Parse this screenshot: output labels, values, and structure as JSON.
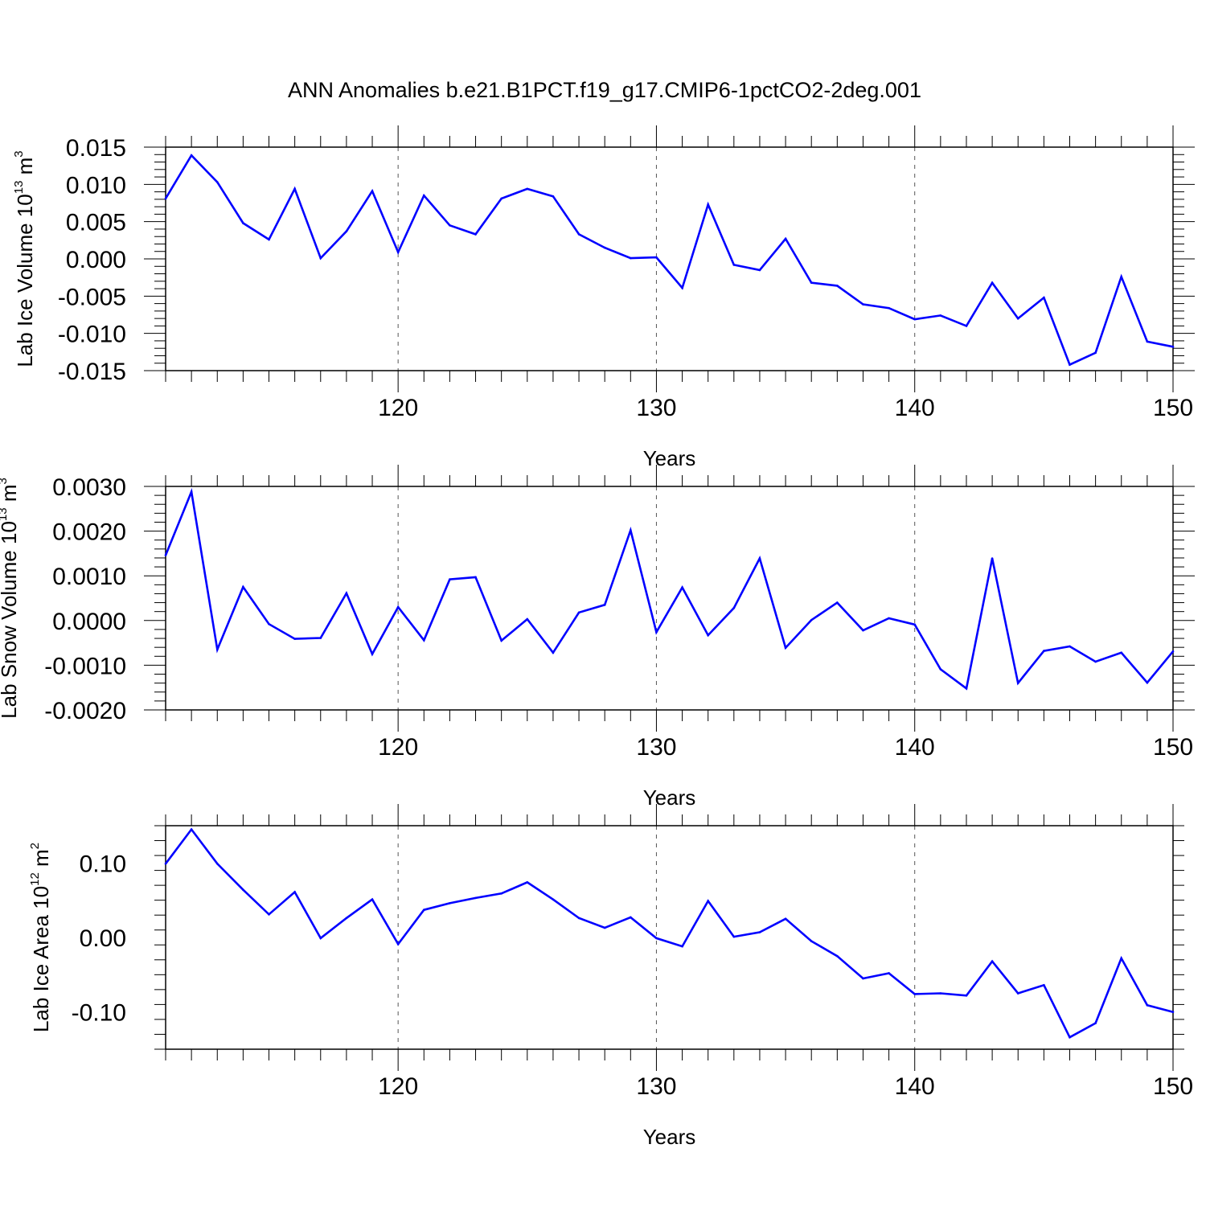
{
  "title": "ANN Anomalies b.e21.B1PCT.f19_g17.CMIP6-1pctCO2-2deg.001",
  "chart_data": [
    {
      "type": "line",
      "xlabel": "Years",
      "ylabel": {
        "text": "Lab Ice Volume 10",
        "exp": "13",
        "unit": " m",
        "unit_exp": "3"
      },
      "xlim": [
        111,
        150
      ],
      "ylim": [
        -0.015,
        0.015
      ],
      "xticks": [
        120,
        130,
        140,
        150
      ],
      "xtick_labels": [
        "120",
        "130",
        "140",
        "150"
      ],
      "yticks": [
        0.015,
        0.01,
        0.005,
        0.0,
        -0.005,
        -0.01,
        -0.015
      ],
      "ytick_labels": [
        "0.015",
        "0.010",
        "0.005",
        "0.000",
        "-0.005",
        "-0.010",
        "-0.015"
      ],
      "grid_x": [
        120,
        130,
        140
      ],
      "line_color": "#0000ff",
      "x": [
        111,
        112,
        113,
        114,
        115,
        116,
        117,
        118,
        119,
        120,
        121,
        122,
        123,
        124,
        125,
        126,
        127,
        128,
        129,
        130,
        131,
        132,
        133,
        134,
        135,
        136,
        137,
        138,
        139,
        140,
        141,
        142,
        143,
        144,
        145,
        146,
        147,
        148,
        149,
        150
      ],
      "values": [
        0.0081,
        0.0139,
        0.0103,
        0.0048,
        0.0026,
        0.0094,
        0.0001,
        0.0037,
        0.0091,
        0.0009,
        0.0085,
        0.0045,
        0.0033,
        0.0081,
        0.0094,
        0.0084,
        0.0033,
        0.0015,
        0.0001,
        0.0002,
        -0.0039,
        0.0073,
        -0.0008,
        -0.0015,
        0.0027,
        -0.0032,
        -0.0036,
        -0.0061,
        -0.0066,
        -0.0081,
        -0.0076,
        -0.009,
        -0.0032,
        -0.008,
        -0.0052,
        -0.0142,
        -0.0126,
        -0.0024,
        -0.0111,
        -0.0118
      ]
    },
    {
      "type": "line",
      "xlabel": "Years",
      "ylabel": {
        "text": "Lab Snow Volume 10",
        "exp": "13",
        "unit": " m",
        "unit_exp": "3"
      },
      "xlim": [
        111,
        150
      ],
      "ylim": [
        -0.002,
        0.003
      ],
      "xticks": [
        120,
        130,
        140,
        150
      ],
      "xtick_labels": [
        "120",
        "130",
        "140",
        "150"
      ],
      "yticks": [
        0.003,
        0.002,
        0.001,
        0.0,
        -0.001,
        -0.002
      ],
      "ytick_labels": [
        "0.0030",
        "0.0020",
        "0.0010",
        "0.0000",
        "-0.0010",
        "-0.0020"
      ],
      "grid_x": [
        120,
        130,
        140
      ],
      "line_color": "#0000ff",
      "x": [
        111,
        112,
        113,
        114,
        115,
        116,
        117,
        118,
        119,
        120,
        121,
        122,
        123,
        124,
        125,
        126,
        127,
        128,
        129,
        130,
        131,
        132,
        133,
        134,
        135,
        136,
        137,
        138,
        139,
        140,
        141,
        142,
        143,
        144,
        145,
        146,
        147,
        148,
        149,
        150
      ],
      "values": [
        0.00146,
        0.00288,
        -0.00065,
        0.00075,
        -8e-05,
        -0.00041,
        -0.00039,
        0.00061,
        -0.00075,
        0.0003,
        -0.00044,
        0.00092,
        0.00097,
        -0.00045,
        3e-05,
        -0.00072,
        0.00018,
        0.00035,
        0.00202,
        -0.00026,
        0.00074,
        -0.00033,
        0.00028,
        0.00139,
        -0.00061,
        1e-05,
        0.0004,
        -0.00022,
        5e-05,
        -9e-05,
        -0.00109,
        -0.00152,
        0.00139,
        -0.0014,
        -0.00068,
        -0.00058,
        -0.00092,
        -0.00072,
        -0.00139,
        -0.00069
      ]
    },
    {
      "type": "line",
      "xlabel": "Years",
      "ylabel": {
        "text": "Lab Ice Area 10",
        "exp": "12",
        "unit": " m",
        "unit_exp": "2"
      },
      "xlim": [
        111,
        150
      ],
      "ylim": [
        -0.15,
        0.15
      ],
      "xticks": [
        120,
        130,
        140,
        150
      ],
      "xtick_labels": [
        "120",
        "130",
        "140",
        "150"
      ],
      "yticks": [
        0.1,
        0.0,
        -0.1
      ],
      "ytick_labels": [
        "0.10",
        "0.00",
        "-0.10"
      ],
      "grid_x": [
        120,
        130,
        140
      ],
      "line_color": "#0000ff",
      "x": [
        111,
        112,
        113,
        114,
        115,
        116,
        117,
        118,
        119,
        120,
        121,
        122,
        123,
        124,
        125,
        126,
        127,
        128,
        129,
        130,
        131,
        132,
        133,
        134,
        135,
        136,
        137,
        138,
        139,
        140,
        141,
        142,
        143,
        144,
        145,
        146,
        147,
        148,
        149,
        150
      ],
      "values": [
        0.099,
        0.145,
        0.099,
        0.064,
        0.031,
        0.061,
        -0.001,
        0.026,
        0.051,
        -0.009,
        0.037,
        0.046,
        0.053,
        0.059,
        0.074,
        0.051,
        0.026,
        0.013,
        0.027,
        -0.001,
        -0.012,
        0.049,
        0.001,
        0.007,
        0.025,
        -0.005,
        -0.025,
        -0.055,
        -0.048,
        -0.076,
        -0.075,
        -0.078,
        -0.032,
        -0.075,
        -0.064,
        -0.134,
        -0.115,
        -0.028,
        -0.091,
        -0.1
      ]
    }
  ]
}
